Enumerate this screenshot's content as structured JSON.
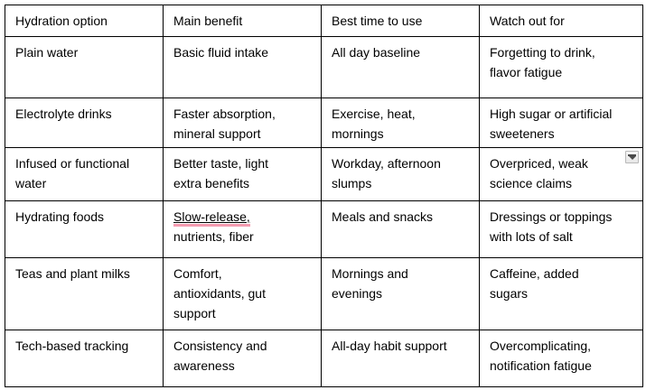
{
  "page": {
    "background": "#ffffff"
  },
  "table": {
    "border_color": "#000000",
    "suggestion_underline_color": "#f49bb0",
    "header": [
      "Hydration option",
      "Main benefit",
      "Best time to use",
      "Watch out for"
    ],
    "rows": [
      [
        "Plain water",
        "Basic fluid intake",
        "All day baseline",
        "Forgetting to drink,\nflavor fatigue"
      ],
      [
        "Electrolyte drinks",
        "Faster absorption,\nmineral support",
        "Exercise, heat,\nmornings",
        "High sugar or artificial\nsweeteners"
      ],
      [
        "Infused or functional\nwater",
        "Better taste, light\nextra benefits",
        "Workday, afternoon\nslumps",
        "Overpriced, weak\nscience claims"
      ],
      [
        "Hydrating foods",
        {
          "segments": [
            {
              "text": "Slow-release,",
              "class": "suggestion"
            },
            {
              "text": "\nnutrients, fiber"
            }
          ]
        },
        "Meals and snacks",
        "Dressings or toppings\nwith lots of salt"
      ],
      [
        "Teas and plant milks",
        "Comfort,\nantioxidants, gut\nsupport",
        "Mornings and\nevenings",
        "Caffeine, added\nsugars"
      ],
      [
        "Tech-based tracking",
        "Consistency and\nawareness",
        "All-day habit support",
        "Overcomplicating,\nnotification fatigue"
      ]
    ]
  },
  "widgets": {
    "dropdown_button": {
      "icon": "chevron-down-icon"
    }
  }
}
